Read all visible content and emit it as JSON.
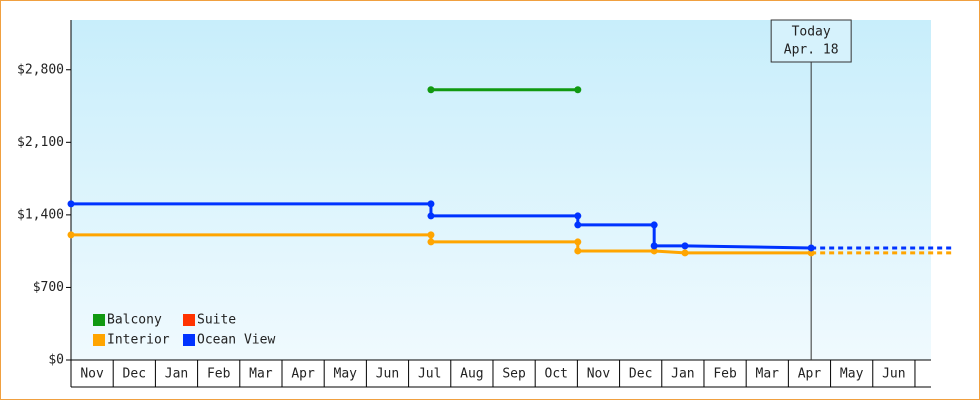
{
  "chart_data": {
    "type": "step-line",
    "categories": [
      "Nov",
      "Dec",
      "Jan",
      "Feb",
      "Mar",
      "Apr",
      "May",
      "Jun",
      "Jul",
      "Aug",
      "Sep",
      "Oct",
      "Nov",
      "Dec",
      "Jan",
      "Feb",
      "Mar",
      "Apr",
      "May",
      "Jun"
    ],
    "xlim": [
      0,
      20.38
    ],
    "ylim": [
      0,
      3280
    ],
    "yticks": [
      {
        "value": 0,
        "label": "$0"
      },
      {
        "value": 700,
        "label": "$700"
      },
      {
        "value": 1400,
        "label": "$1,400"
      },
      {
        "value": 2100,
        "label": "$2,100"
      },
      {
        "value": 2800,
        "label": "$2,800"
      }
    ],
    "series": [
      {
        "name": "Balcony",
        "color": "#119911",
        "x": [
          8.53,
          12.01
        ],
        "values": [
          2607,
          2607
        ]
      },
      {
        "name": "Suite",
        "color": "#ff3300",
        "x": [],
        "values": []
      },
      {
        "name": "Interior",
        "color": "#ffa500",
        "x": [
          0,
          8.53,
          8.53,
          12.01,
          12.01,
          13.82,
          14.55,
          17.54
        ],
        "values": [
          1207,
          1207,
          1139,
          1139,
          1052,
          1052,
          1033,
          1033
        ]
      },
      {
        "name": "Ocean View",
        "color": "#0033ff",
        "x": [
          0,
          8.53,
          8.53,
          12.01,
          12.01,
          13.82,
          13.82,
          14.55,
          17.54
        ],
        "values": [
          1506,
          1506,
          1390,
          1390,
          1303,
          1303,
          1101,
          1101,
          1081
        ]
      }
    ],
    "today": {
      "label": [
        "Today",
        "Apr. 18"
      ],
      "x": 17.54
    },
    "projection": true
  }
}
